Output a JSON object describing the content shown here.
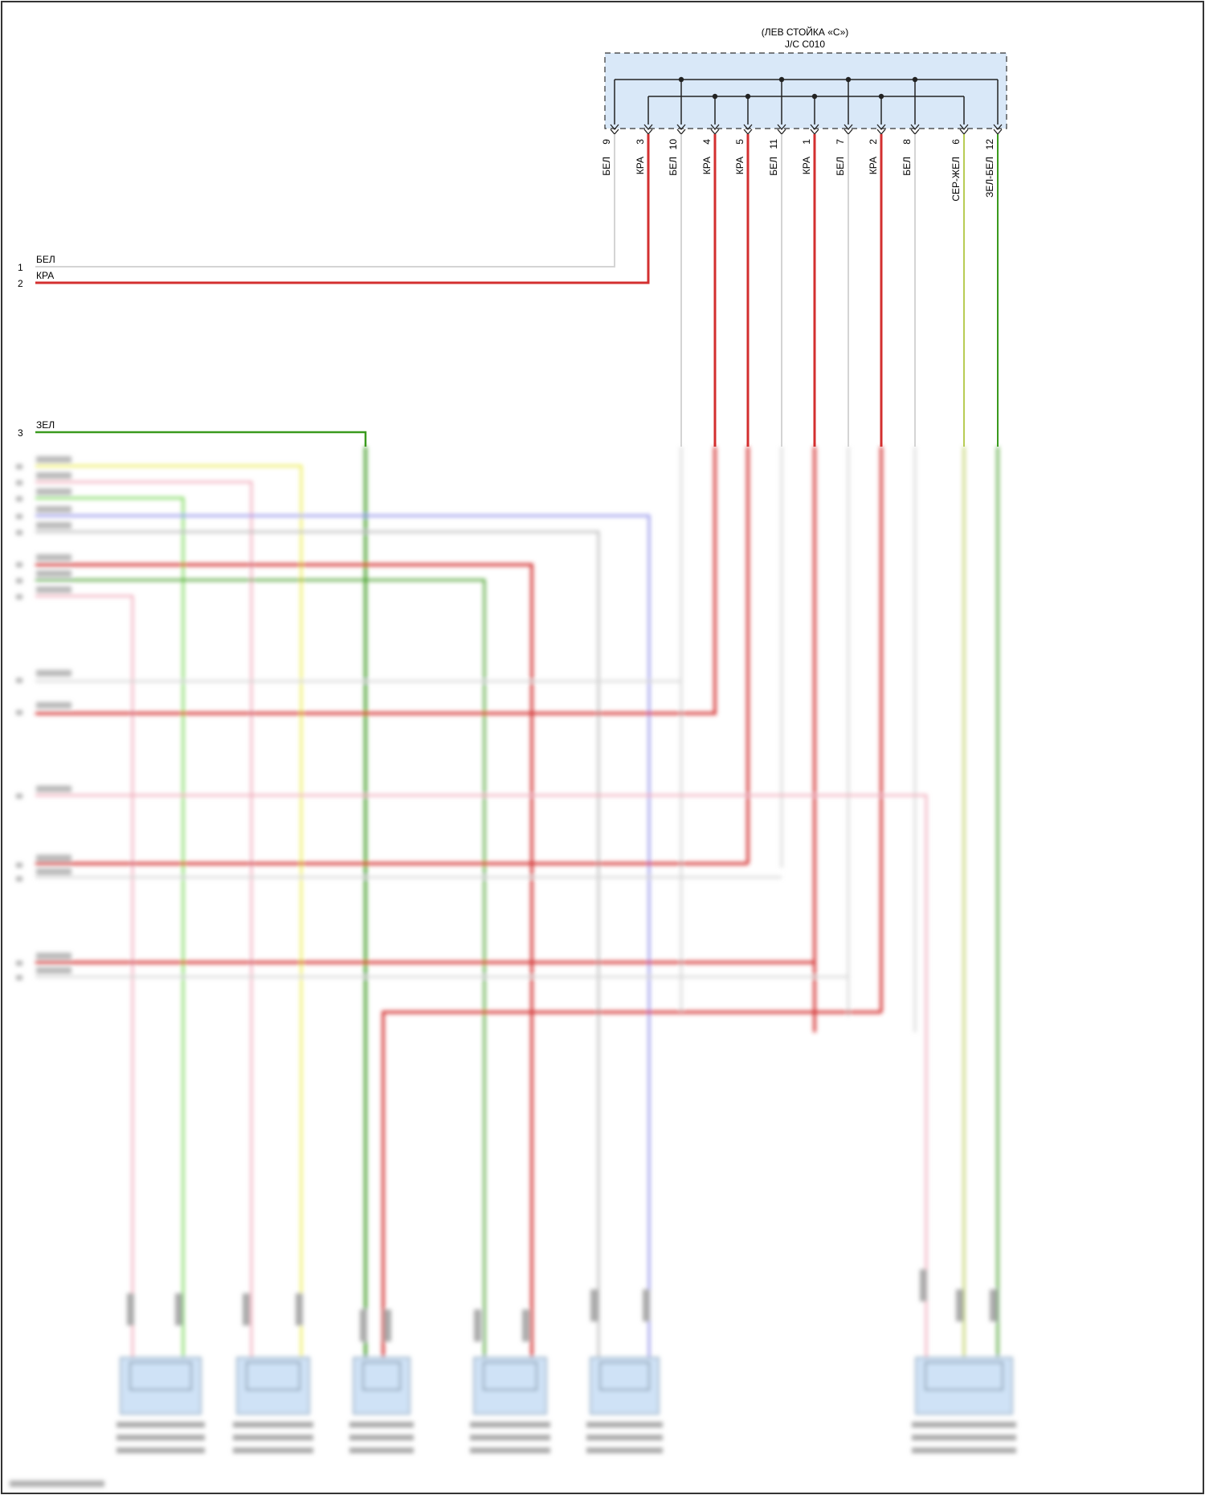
{
  "connector_box": {
    "title_line1": "(ЛЕВ СТОЙКА «С»)",
    "title_line2": "J/C C010",
    "pins": [
      {
        "pin": "9",
        "wire": "БЕЛ"
      },
      {
        "pin": "3",
        "wire": "КРА"
      },
      {
        "pin": "10",
        "wire": "БЕЛ"
      },
      {
        "pin": "4",
        "wire": "КРА"
      },
      {
        "pin": "5",
        "wire": "КРА"
      },
      {
        "pin": "11",
        "wire": "БЕЛ"
      },
      {
        "pin": "1",
        "wire": "КРА"
      },
      {
        "pin": "7",
        "wire": "БЕЛ"
      },
      {
        "pin": "2",
        "wire": "КРА"
      },
      {
        "pin": "8",
        "wire": "БЕЛ"
      },
      {
        "pin": "6",
        "wire": "СЕР-ЖЕЛ"
      },
      {
        "pin": "12",
        "wire": "ЗЕЛ-БЕЛ"
      }
    ]
  },
  "left_wires": [
    {
      "num": "1",
      "wire": "БЕЛ"
    },
    {
      "num": "2",
      "wire": "КРА"
    },
    {
      "num": "3",
      "wire": "ЗЕЛ"
    }
  ],
  "colors": {
    "white_wire": "#d4d4d4",
    "red_wire": "#d32f2f",
    "green_wire": "#3a9a1e",
    "yellow_green_wire": "#b8cc55",
    "light_green_wire": "#6fd64a",
    "yellow_wire": "#ecec4a",
    "pink_wire": "#f0a8b8",
    "blue_wire": "#8a8ae8",
    "gray_wire": "#b8b8b8",
    "component_fill": "#cfe2f6"
  }
}
